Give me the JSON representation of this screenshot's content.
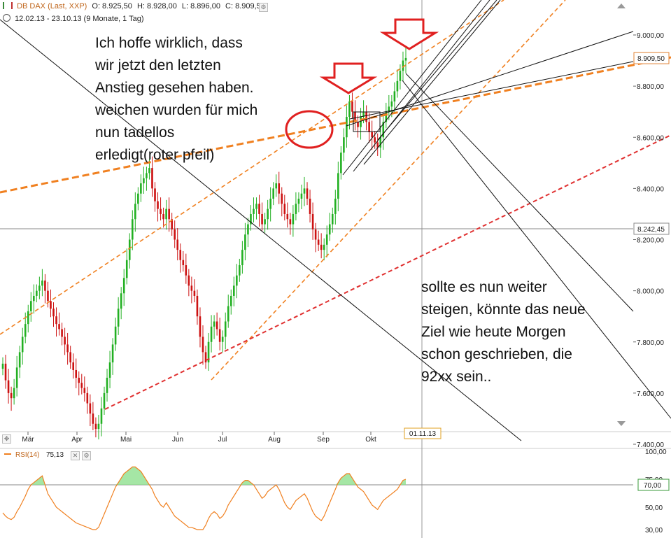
{
  "header": {
    "instrument": "DB DAX (Last, XXP)",
    "open": "O: 8.925,50",
    "high": "H: 8.928,00",
    "low": "L: 8.896,00",
    "close": "C: 8.909,50",
    "range": "12.02.13 - 23.10.13 (9 Monate, 1 Tag)"
  },
  "annotations": {
    "left": "Ich hoffe wirklich, dass\nwir jetzt den letzten\nAnstieg gesehen haben.\nweichen wurden für mich\nnun tadellos\nerledigt(roter pfeil)",
    "right": "sollte es nun weiter\nsteigen, könnte das neue\nZiel wie heute Morgen\nschon geschrieben, die\n92xx sein.."
  },
  "chart_data": [
    {
      "type": "candlestick",
      "yticks": [
        "9.000,00",
        "8.800,00",
        "8.600,00",
        "8.400,00",
        "8.200,00",
        "8.000,00",
        "7.800,00",
        "7.600,00",
        "7.400,00"
      ],
      "ytick_values": [
        9000,
        8800,
        8600,
        8400,
        8200,
        8000,
        7800,
        7600,
        7400
      ],
      "ylim": [
        7400,
        9000
      ],
      "xticks": [
        "Mär",
        "Apr",
        "Mai",
        "Jun",
        "Jul",
        "Aug",
        "Sep",
        "Okt"
      ],
      "cursor_date": "01.11.13",
      "last_price_label": "8.909,50",
      "last_price": 8909.5,
      "hline_label": "8.242,45",
      "hline_value": 8242.45,
      "colors": {
        "up": "#22b022",
        "down": "#cc1111",
        "trend_orange": "#f08020",
        "trend_red": "#e03030",
        "trend_black": "#111111"
      },
      "closes": [
        7715,
        7650,
        7600,
        7580,
        7620,
        7700,
        7760,
        7820,
        7870,
        7920,
        7960,
        7980,
        8000,
        8020,
        8040,
        8000,
        7960,
        7930,
        7900,
        7870,
        7850,
        7820,
        7790,
        7760,
        7720,
        7690,
        7660,
        7640,
        7620,
        7600,
        7560,
        7520,
        7480,
        7460,
        7480,
        7540,
        7600,
        7660,
        7720,
        7790,
        7860,
        7930,
        7990,
        8050,
        8120,
        8200,
        8280,
        8340,
        8380,
        8420,
        8440,
        8460,
        8480,
        8400,
        8350,
        8320,
        8300,
        8280,
        8320,
        8280,
        8240,
        8200,
        8160,
        8120,
        8100,
        8060,
        8020,
        8000,
        7980,
        7900,
        7820,
        7760,
        7720,
        7800,
        7860,
        7880,
        7850,
        7800,
        7820,
        7880,
        7940,
        7980,
        8020,
        8060,
        8100,
        8160,
        8220,
        8260,
        8300,
        8320,
        8340,
        8300,
        8260,
        8280,
        8320,
        8360,
        8400,
        8420,
        8380,
        8340,
        8300,
        8280,
        8260,
        8300,
        8340,
        8360,
        8380,
        8400,
        8360,
        8300,
        8240,
        8200,
        8180,
        8160,
        8180,
        8220,
        8260,
        8300,
        8360,
        8460,
        8540,
        8600,
        8680,
        8740,
        8700,
        8660,
        8640,
        8680,
        8700,
        8660,
        8620,
        8600,
        8580,
        8560,
        8600,
        8660,
        8700,
        8720,
        8740,
        8780,
        8820,
        8860,
        8900,
        8910
      ],
      "rsi": {
        "label": "RSI(14)",
        "value": "75,13",
        "yticks": [
          "100,00",
          "75,00",
          "50,00",
          "30,00"
        ],
        "ytick_values": [
          100,
          75,
          50,
          30
        ],
        "level_label": "70,00",
        "level": 70,
        "ylim": [
          25,
          100
        ],
        "values": [
          45,
          42,
          40,
          39,
          41,
          46,
          50,
          55,
          60,
          66,
          70,
          72,
          74,
          76,
          78,
          70,
          62,
          58,
          54,
          50,
          48,
          46,
          44,
          42,
          40,
          38,
          36,
          35,
          34,
          33,
          32,
          31,
          30,
          30,
          32,
          38,
          44,
          50,
          56,
          62,
          68,
          72,
          76,
          80,
          82,
          84,
          86,
          86,
          84,
          82,
          78,
          74,
          70,
          66,
          60,
          56,
          52,
          50,
          54,
          50,
          46,
          42,
          40,
          38,
          36,
          34,
          32,
          32,
          31,
          30,
          30,
          30,
          34,
          40,
          44,
          46,
          44,
          40,
          42,
          46,
          52,
          56,
          60,
          64,
          68,
          72,
          74,
          74,
          72,
          70,
          66,
          62,
          58,
          60,
          64,
          66,
          68,
          70,
          66,
          60,
          54,
          50,
          48,
          52,
          56,
          58,
          60,
          62,
          58,
          52,
          46,
          42,
          40,
          38,
          42,
          48,
          54,
          60,
          66,
          72,
          76,
          78,
          80,
          80,
          76,
          72,
          68,
          66,
          64,
          60,
          56,
          52,
          50,
          48,
          52,
          56,
          58,
          60,
          62,
          64,
          66,
          70,
          74,
          75
        ]
      }
    }
  ]
}
